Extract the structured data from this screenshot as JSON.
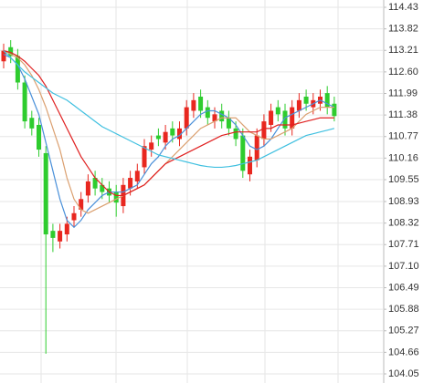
{
  "chart_data": {
    "type": "candlestick",
    "up_color": "#e8271f",
    "down_color": "#2ecc2e",
    "open": [
      112.9,
      113.3,
      113.05,
      112.3,
      111.3,
      111.1,
      110.3,
      108.1,
      107.8,
      108.0,
      108.4,
      108.7,
      109.1,
      109.6,
      109.4,
      109.3,
      109.2,
      108.8,
      109.3,
      109.5,
      109.9,
      110.4,
      110.8,
      110.6,
      111.0,
      110.7,
      111.0,
      111.5,
      111.9,
      111.6,
      111.2,
      111.5,
      111.3,
      111.0,
      110.8,
      109.7,
      110.1,
      110.7,
      111.1,
      111.6,
      111.5,
      111.0,
      111.5,
      111.9,
      111.6,
      111.7,
      112.0,
      111.7
    ],
    "high": [
      113.4,
      113.5,
      113.25,
      112.5,
      111.5,
      111.3,
      110.5,
      108.3,
      108.3,
      108.5,
      108.8,
      109.2,
      109.7,
      109.8,
      109.6,
      109.5,
      109.4,
      109.6,
      109.8,
      110.0,
      110.7,
      110.8,
      111.0,
      111.1,
      111.2,
      111.2,
      111.8,
      112.0,
      112.1,
      111.8,
      111.6,
      111.7,
      111.5,
      111.2,
      111.0,
      110.4,
      111.0,
      111.4,
      111.7,
      111.8,
      111.7,
      111.8,
      112.0,
      112.1,
      112.0,
      112.1,
      112.2,
      111.9
    ],
    "low": [
      112.7,
      112.85,
      112.1,
      111.0,
      110.8,
      110.2,
      104.62,
      107.5,
      107.6,
      107.8,
      108.2,
      108.5,
      108.9,
      109.1,
      109.0,
      108.9,
      108.5,
      108.6,
      109.1,
      109.3,
      109.7,
      110.2,
      110.5,
      110.4,
      110.6,
      110.5,
      110.8,
      111.3,
      111.3,
      111.1,
      111.0,
      111.0,
      110.8,
      110.5,
      109.6,
      109.5,
      109.9,
      110.5,
      110.9,
      111.2,
      110.8,
      110.8,
      111.3,
      111.5,
      111.4,
      111.5,
      111.4,
      111.2
    ],
    "close": [
      113.2,
      113.05,
      112.3,
      111.2,
      111.0,
      110.4,
      108.0,
      107.9,
      108.1,
      108.3,
      108.6,
      109.0,
      109.5,
      109.3,
      109.2,
      109.1,
      108.9,
      109.4,
      109.6,
      109.8,
      110.5,
      110.6,
      110.7,
      110.9,
      110.8,
      111.0,
      111.6,
      111.8,
      111.5,
      111.3,
      111.4,
      111.2,
      111.0,
      110.7,
      109.8,
      110.2,
      110.8,
      111.2,
      111.5,
      111.4,
      111.0,
      111.6,
      111.8,
      111.7,
      111.8,
      111.9,
      111.6,
      111.35
    ],
    "lines": [
      {
        "color": "#4a90d9",
        "values": [
          113.1,
          113.0,
          112.8,
          112.4,
          111.9,
          111.4,
          110.6,
          109.8,
          109.0,
          108.4,
          108.2,
          108.4,
          108.7,
          108.9,
          109.1,
          109.2,
          109.2,
          109.2,
          109.3,
          109.4,
          109.7,
          110.0,
          110.2,
          110.5,
          110.7,
          110.8,
          111.0,
          111.2,
          111.4,
          111.5,
          111.5,
          111.4,
          111.3,
          111.1,
          110.8,
          110.5,
          110.4,
          110.5,
          110.7,
          111.0,
          111.3,
          111.4,
          111.5,
          111.6,
          111.7,
          111.8,
          111.7,
          111.6
        ]
      },
      {
        "color": "#dba070",
        "values": [
          113.2,
          113.1,
          113.0,
          112.8,
          112.5,
          112.1,
          111.6,
          111.0,
          110.4,
          109.6,
          109.0,
          108.7,
          108.6,
          108.7,
          108.8,
          108.9,
          109.0,
          109.1,
          109.2,
          109.3,
          109.4,
          109.6,
          109.8,
          110.0,
          110.2,
          110.4,
          110.6,
          110.8,
          111.0,
          111.1,
          111.2,
          111.3,
          111.3,
          111.3,
          111.1,
          110.9,
          110.8,
          110.7,
          110.7,
          110.8,
          110.9,
          111.0,
          111.2,
          111.4,
          111.5,
          111.6,
          111.6,
          111.6
        ]
      },
      {
        "color": "#e02020",
        "values": [
          113.2,
          113.15,
          113.05,
          112.9,
          112.7,
          112.5,
          112.2,
          111.8,
          111.4,
          111.0,
          110.6,
          110.2,
          109.9,
          109.6,
          109.4,
          109.2,
          109.1,
          109.1,
          109.2,
          109.3,
          109.4,
          109.6,
          109.8,
          110.0,
          110.1,
          110.2,
          110.3,
          110.4,
          110.5,
          110.6,
          110.7,
          110.8,
          110.85,
          110.9,
          110.9,
          110.9,
          110.9,
          111.0,
          111.0,
          111.1,
          111.1,
          111.1,
          111.15,
          111.2,
          111.25,
          111.3,
          111.3,
          111.3
        ]
      },
      {
        "color": "#40c0e0",
        "values": [
          113.2,
          113.0,
          112.8,
          112.6,
          112.45,
          112.3,
          112.15,
          112.0,
          111.9,
          111.8,
          111.65,
          111.5,
          111.35,
          111.2,
          111.05,
          110.95,
          110.85,
          110.75,
          110.65,
          110.55,
          110.45,
          110.35,
          110.25,
          110.2,
          110.15,
          110.1,
          110.05,
          110.0,
          109.95,
          109.92,
          109.9,
          109.9,
          109.92,
          109.95,
          110.0,
          110.05,
          110.1,
          110.2,
          110.3,
          110.4,
          110.5,
          110.6,
          110.7,
          110.8,
          110.85,
          110.9,
          110.95,
          111.0
        ]
      }
    ],
    "ylim": [
      104.05,
      114.43
    ],
    "yticks": [
      114.43,
      113.82,
      113.21,
      {
        "value": 112.6,
        "label": "112.60"
      },
      111.99,
      111.38,
      110.77,
      110.16,
      109.55,
      108.93,
      108.32,
      107.71,
      {
        "value": 107.1,
        "label": "107.10"
      },
      106.49,
      105.88,
      105.27,
      104.66,
      104.05
    ],
    "grid": true
  }
}
